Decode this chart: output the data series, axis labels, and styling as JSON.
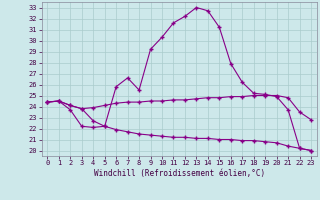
{
  "xlabel": "Windchill (Refroidissement éolien,°C)",
  "bg_color": "#cde8ea",
  "line_color": "#880088",
  "grid_color": "#aacccc",
  "x_ticks": [
    0,
    1,
    2,
    3,
    4,
    5,
    6,
    7,
    8,
    9,
    10,
    11,
    12,
    13,
    14,
    15,
    16,
    17,
    18,
    19,
    20,
    21,
    22,
    23
  ],
  "y_ticks": [
    20,
    21,
    22,
    23,
    24,
    25,
    26,
    27,
    28,
    29,
    30,
    31,
    32,
    33
  ],
  "xlim": [
    -0.5,
    23.5
  ],
  "ylim": [
    19.5,
    33.5
  ],
  "series": [
    [
      24.4,
      24.5,
      23.7,
      22.2,
      22.1,
      22.2,
      25.8,
      26.6,
      25.5,
      29.2,
      30.3,
      31.6,
      32.2,
      33.0,
      32.7,
      31.2,
      27.9,
      26.2,
      25.2,
      25.1,
      24.9,
      23.7,
      20.2,
      20.0
    ],
    [
      24.4,
      24.5,
      24.1,
      23.8,
      23.9,
      24.1,
      24.3,
      24.4,
      24.4,
      24.5,
      24.5,
      24.6,
      24.6,
      24.7,
      24.8,
      24.8,
      24.9,
      24.9,
      25.0,
      25.0,
      25.0,
      24.8,
      23.5,
      22.8
    ],
    [
      24.4,
      24.5,
      24.1,
      23.8,
      22.7,
      22.2,
      21.9,
      21.7,
      21.5,
      21.4,
      21.3,
      21.2,
      21.2,
      21.1,
      21.1,
      21.0,
      21.0,
      20.9,
      20.9,
      20.8,
      20.7,
      20.4,
      20.2,
      20.0
    ]
  ]
}
